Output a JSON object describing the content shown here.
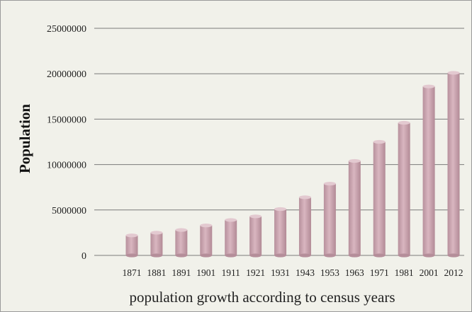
{
  "chart_data": {
    "type": "bar",
    "title": "",
    "xlabel": "population growth according to census years",
    "ylabel": "Population",
    "ylim": [
      0,
      25000000
    ],
    "yticks": [
      0,
      5000000,
      10000000,
      15000000,
      20000000,
      25000000
    ],
    "ytick_labels": [
      "0",
      "5000000",
      "10000000",
      "15000000",
      "20000000",
      "25000000"
    ],
    "categories": [
      "1871",
      "1881",
      "1891",
      "1901",
      "1911",
      "1921",
      "1931",
      "1943",
      "1953",
      "1963",
      "1971",
      "1981",
      "2001",
      "2012"
    ],
    "values": [
      2200000,
      2500000,
      2800000,
      3300000,
      3900000,
      4300000,
      5100000,
      6400000,
      7900000,
      10400000,
      12500000,
      14600000,
      18600000,
      20100000
    ],
    "grid": true,
    "legend": "none",
    "colors": {
      "bar": "#c9a2ae",
      "bar_top": "#e3c9d0",
      "background": "#f1f1ea",
      "grid": "#7a7a7a"
    }
  }
}
